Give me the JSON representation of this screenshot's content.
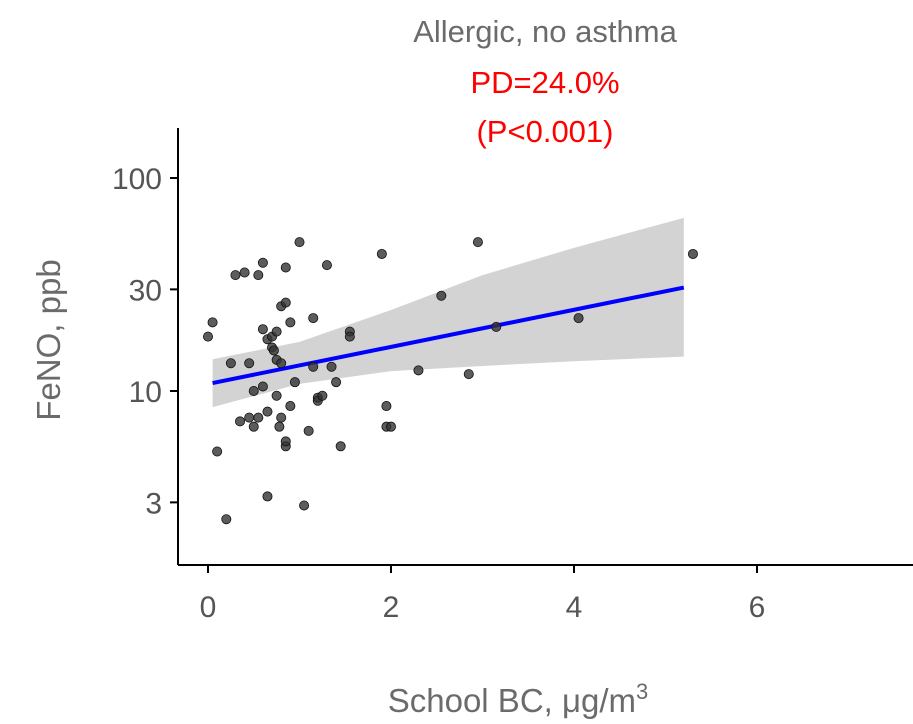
{
  "chart_data": {
    "type": "scatter",
    "title": "Allergic, no asthma",
    "subtitle_lines": [
      "PD=24.0%",
      "(P<0.001)"
    ],
    "subtitle_color": "#ff0000",
    "title_color": "#707070",
    "xlabel": "School BC, μg/m",
    "xlabel_superscript": "3",
    "ylabel": "FeNO, ppb",
    "y_scale": "log",
    "xlim": [
      -0.15,
      7.6
    ],
    "ylim": [
      2.0,
      150
    ],
    "x_ticks": [
      0,
      2,
      4,
      6
    ],
    "x_tick_labels": [
      "0",
      "2",
      "4",
      "6"
    ],
    "y_ticks": [
      3,
      10,
      30,
      100
    ],
    "y_tick_labels": [
      "3",
      "10",
      "30",
      "100"
    ],
    "grid": false,
    "legend": "none",
    "point_color": "#333333",
    "fit_color": "#0000ff",
    "band_color": "#d3d3d3",
    "fit_line": {
      "x": [
        0.05,
        5.2
      ],
      "y": [
        10.9,
        30.6
      ]
    },
    "confidence_band": {
      "x": [
        0.05,
        1.0,
        2.0,
        3.0,
        4.0,
        5.2
      ],
      "lower": [
        8.4,
        10.8,
        12.4,
        13.1,
        13.8,
        14.5
      ],
      "upper": [
        14.1,
        17.0,
        24.0,
        35.0,
        47.0,
        65.0
      ]
    },
    "points": [
      {
        "x": 0.0,
        "y": 18
      },
      {
        "x": 0.05,
        "y": 21
      },
      {
        "x": 0.1,
        "y": 5.2
      },
      {
        "x": 0.2,
        "y": 2.5
      },
      {
        "x": 0.25,
        "y": 13.5
      },
      {
        "x": 0.3,
        "y": 35
      },
      {
        "x": 0.35,
        "y": 7.2
      },
      {
        "x": 0.4,
        "y": 36
      },
      {
        "x": 0.45,
        "y": 7.5
      },
      {
        "x": 0.45,
        "y": 13.5
      },
      {
        "x": 0.5,
        "y": 10
      },
      {
        "x": 0.5,
        "y": 6.8
      },
      {
        "x": 0.55,
        "y": 7.5
      },
      {
        "x": 0.55,
        "y": 35
      },
      {
        "x": 0.6,
        "y": 40
      },
      {
        "x": 0.6,
        "y": 19.5
      },
      {
        "x": 0.6,
        "y": 10.5
      },
      {
        "x": 0.65,
        "y": 8
      },
      {
        "x": 0.65,
        "y": 3.2
      },
      {
        "x": 0.65,
        "y": 17.5
      },
      {
        "x": 0.7,
        "y": 16
      },
      {
        "x": 0.7,
        "y": 18
      },
      {
        "x": 0.72,
        "y": 15.5
      },
      {
        "x": 0.75,
        "y": 19
      },
      {
        "x": 0.75,
        "y": 14
      },
      {
        "x": 0.75,
        "y": 9.5
      },
      {
        "x": 0.78,
        "y": 6.8
      },
      {
        "x": 0.8,
        "y": 7.5
      },
      {
        "x": 0.8,
        "y": 25
      },
      {
        "x": 0.8,
        "y": 13.5
      },
      {
        "x": 0.85,
        "y": 38
      },
      {
        "x": 0.85,
        "y": 26
      },
      {
        "x": 0.85,
        "y": 5.5
      },
      {
        "x": 0.85,
        "y": 5.8
      },
      {
        "x": 0.9,
        "y": 21
      },
      {
        "x": 0.9,
        "y": 8.5
      },
      {
        "x": 0.95,
        "y": 11
      },
      {
        "x": 1.0,
        "y": 50
      },
      {
        "x": 1.05,
        "y": 2.9
      },
      {
        "x": 1.1,
        "y": 6.5
      },
      {
        "x": 1.15,
        "y": 22
      },
      {
        "x": 1.15,
        "y": 13
      },
      {
        "x": 1.2,
        "y": 9.3
      },
      {
        "x": 1.2,
        "y": 9.0
      },
      {
        "x": 1.25,
        "y": 9.5
      },
      {
        "x": 1.3,
        "y": 39
      },
      {
        "x": 1.35,
        "y": 13
      },
      {
        "x": 1.4,
        "y": 11
      },
      {
        "x": 1.45,
        "y": 5.5
      },
      {
        "x": 1.55,
        "y": 19
      },
      {
        "x": 1.55,
        "y": 18
      },
      {
        "x": 1.9,
        "y": 44
      },
      {
        "x": 1.95,
        "y": 8.5
      },
      {
        "x": 1.95,
        "y": 6.8
      },
      {
        "x": 2.0,
        "y": 6.8
      },
      {
        "x": 2.3,
        "y": 12.5
      },
      {
        "x": 2.55,
        "y": 28
      },
      {
        "x": 2.85,
        "y": 12
      },
      {
        "x": 2.95,
        "y": 50
      },
      {
        "x": 3.15,
        "y": 20
      },
      {
        "x": 4.05,
        "y": 22
      },
      {
        "x": 5.3,
        "y": 44
      }
    ]
  }
}
